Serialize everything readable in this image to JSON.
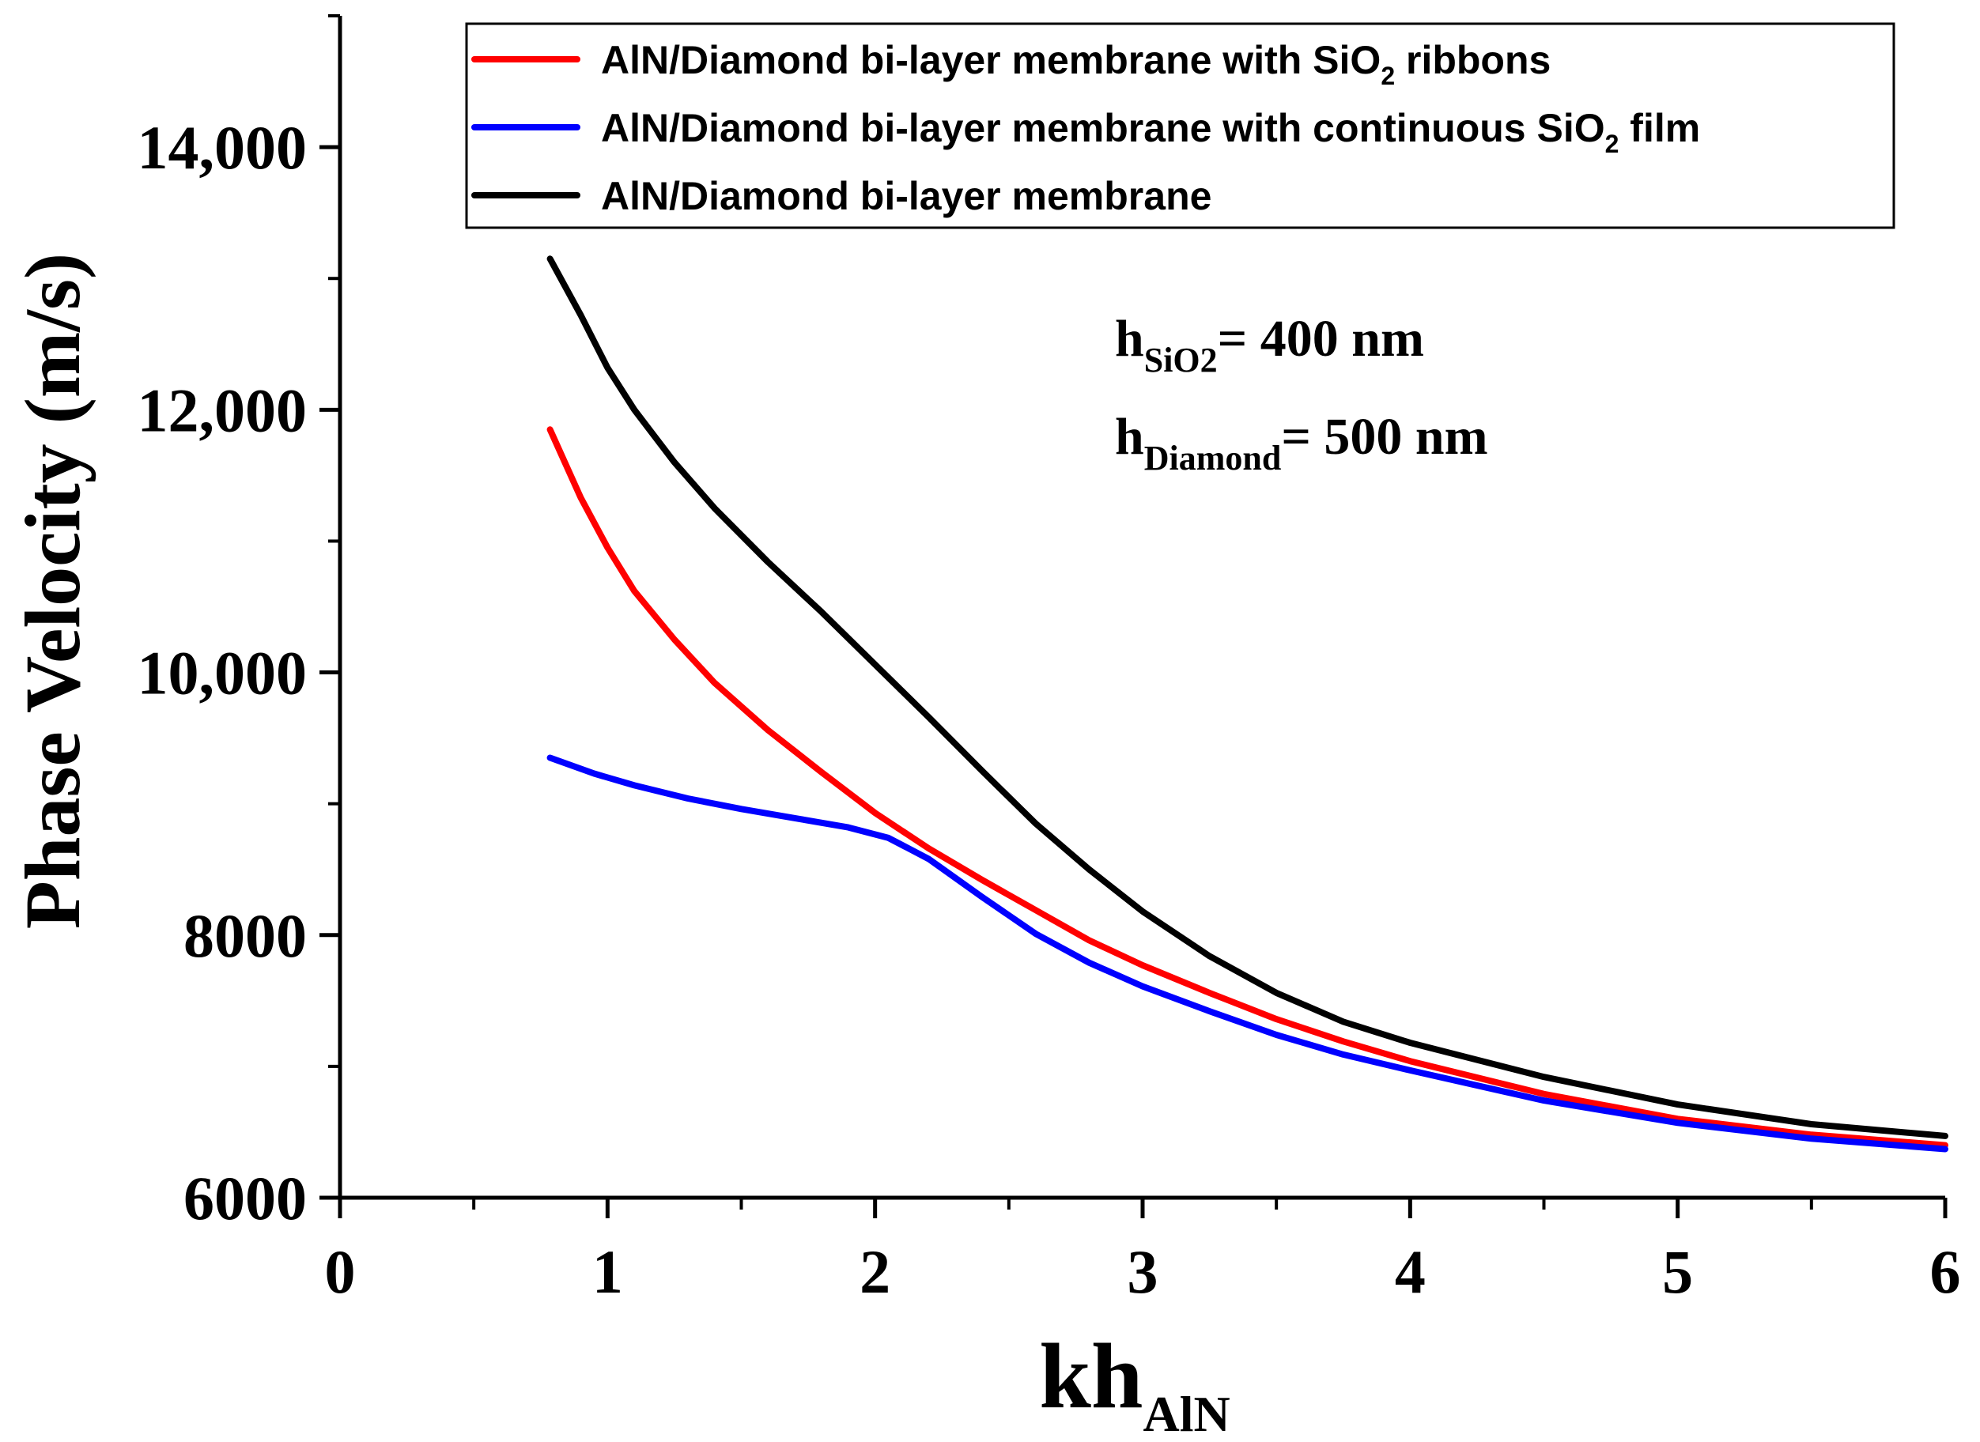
{
  "chart_data": {
    "type": "line",
    "title": "",
    "xlabel": "kh",
    "xlabel_sub": "AlN",
    "ylabel": "Phase Velocity (m/s)",
    "xlim": [
      0,
      6
    ],
    "ylim": [
      6000,
      15000
    ],
    "x_ticks": [
      0,
      1,
      2,
      3,
      4,
      5,
      6
    ],
    "x_tick_labels": [
      "0",
      "1",
      "2",
      "3",
      "4",
      "5",
      "6"
    ],
    "y_ticks": [
      6000,
      8000,
      10000,
      12000,
      14000
    ],
    "y_tick_labels": [
      "6000",
      "8000",
      "10,000",
      "12,000",
      "14,000"
    ],
    "grid": false,
    "legend_position": "top-right",
    "series": [
      {
        "name": "AlN/Diamond bi-layer membrane with SiO2 ribbons",
        "legend_main": "AlN/Diamond bi-layer membrane with SiO",
        "legend_sub": "2",
        "legend_tail": " ribbons",
        "color": "#ff0000",
        "x": [
          0.785,
          0.9,
          1.0,
          1.1,
          1.25,
          1.4,
          1.6,
          1.8,
          2.0,
          2.2,
          2.4,
          2.6,
          2.8,
          3.0,
          3.25,
          3.5,
          3.75,
          4.0,
          4.5,
          5.0,
          5.5,
          6.0
        ],
        "y": [
          11850,
          11330,
          10950,
          10620,
          10250,
          9920,
          9560,
          9240,
          8930,
          8660,
          8420,
          8190,
          7960,
          7770,
          7560,
          7360,
          7190,
          7040,
          6790,
          6600,
          6480,
          6400
        ]
      },
      {
        "name": "AlN/Diamond bi-layer membrane with continuous SiO2 film",
        "legend_main": "AlN/Diamond bi-layer membrane with continuous SiO",
        "legend_sub": "2",
        "legend_tail": " film",
        "color": "#0000ff",
        "x": [
          0.785,
          0.95,
          1.1,
          1.3,
          1.5,
          1.7,
          1.9,
          2.05,
          2.2,
          2.4,
          2.6,
          2.8,
          3.0,
          3.25,
          3.5,
          3.75,
          4.0,
          4.5,
          5.0,
          5.5,
          6.0
        ],
        "y": [
          9350,
          9230,
          9140,
          9040,
          8960,
          8890,
          8820,
          8740,
          8580,
          8290,
          8010,
          7790,
          7610,
          7420,
          7240,
          7090,
          6970,
          6740,
          6570,
          6450,
          6370
        ]
      },
      {
        "name": "AlN/Diamond bi-layer membrane",
        "legend_main": "AlN/Diamond bi-layer membrane",
        "legend_sub": "",
        "legend_tail": "",
        "color": "#000000",
        "x": [
          0.785,
          0.9,
          1.0,
          1.1,
          1.25,
          1.4,
          1.6,
          1.8,
          2.0,
          2.2,
          2.4,
          2.6,
          2.8,
          3.0,
          3.25,
          3.5,
          3.75,
          4.0,
          4.5,
          5.0,
          5.5,
          6.0
        ],
        "y": [
          13150,
          12720,
          12320,
          12000,
          11600,
          11250,
          10840,
          10460,
          10060,
          9660,
          9250,
          8850,
          8500,
          8180,
          7840,
          7560,
          7340,
          7180,
          6920,
          6710,
          6560,
          6470
        ]
      }
    ],
    "annotations": [
      {
        "main": "h",
        "sub": "SiO2",
        "tail": "= 400 nm"
      },
      {
        "main": "h",
        "sub": "Diamond",
        "tail": "= 500 nm"
      }
    ]
  }
}
